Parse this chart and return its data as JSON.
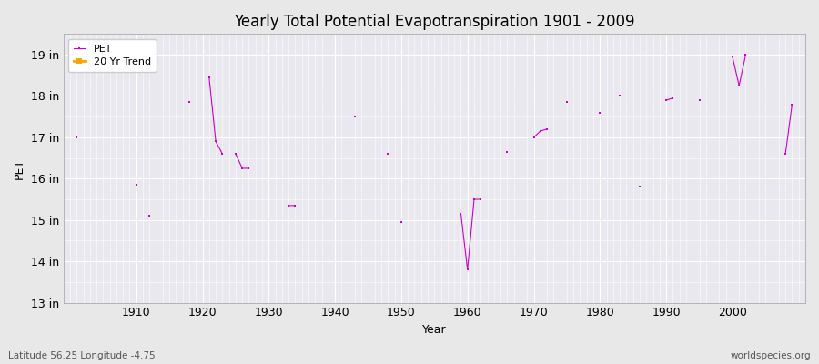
{
  "title": "Yearly Total Potential Evapotranspiration 1901 - 2009",
  "xlabel": "Year",
  "ylabel": "PET",
  "subtitle_left": "Latitude 56.25 Longitude -4.75",
  "subtitle_right": "worldspecies.org",
  "background_color": "#e8e8e8",
  "plot_bg_color": "#e8e8ee",
  "line_color": "#cc00cc",
  "trend_color": "#ffa500",
  "ylim": [
    13,
    19.5
  ],
  "ytick_labels": [
    "13 in",
    "14 in",
    "15 in",
    "16 in",
    "17 in",
    "18 in",
    "19 in"
  ],
  "ytick_values": [
    13,
    14,
    15,
    16,
    17,
    18,
    19
  ],
  "xlim": [
    1899,
    2011
  ],
  "xtick_values": [
    1910,
    1920,
    1930,
    1940,
    1950,
    1960,
    1970,
    1980,
    1990,
    2000
  ],
  "years": [
    1901,
    1902,
    1903,
    1904,
    1905,
    1906,
    1907,
    1908,
    1909,
    1910,
    1911,
    1912,
    1913,
    1914,
    1915,
    1916,
    1917,
    1918,
    1919,
    1920,
    1921,
    1922,
    1923,
    1924,
    1925,
    1926,
    1927,
    1928,
    1929,
    1930,
    1931,
    1932,
    1933,
    1934,
    1935,
    1936,
    1937,
    1938,
    1939,
    1940,
    1941,
    1942,
    1943,
    1944,
    1945,
    1946,
    1947,
    1948,
    1949,
    1950,
    1951,
    1952,
    1953,
    1954,
    1955,
    1956,
    1957,
    1958,
    1959,
    1960,
    1961,
    1962,
    1963,
    1964,
    1965,
    1966,
    1967,
    1968,
    1969,
    1970,
    1971,
    1972,
    1973,
    1974,
    1975,
    1976,
    1977,
    1978,
    1979,
    1980,
    1981,
    1982,
    1983,
    1984,
    1985,
    1986,
    1987,
    1988,
    1989,
    1990,
    1991,
    1992,
    1993,
    1994,
    1995,
    1996,
    1997,
    1998,
    1999,
    2000,
    2001,
    2002,
    2003,
    2004,
    2005,
    2006,
    2007,
    2008,
    2009
  ],
  "pet": [
    17.0,
    null,
    null,
    null,
    null,
    null,
    null,
    null,
    null,
    15.85,
    null,
    15.1,
    null,
    null,
    null,
    null,
    null,
    17.85,
    null,
    null,
    18.45,
    16.9,
    16.6,
    null,
    16.6,
    16.25,
    16.25,
    null,
    null,
    null,
    null,
    null,
    15.35,
    15.35,
    null,
    null,
    null,
    null,
    null,
    null,
    null,
    null,
    17.5,
    null,
    null,
    null,
    null,
    16.6,
    null,
    14.95,
    null,
    null,
    null,
    null,
    null,
    null,
    null,
    null,
    15.15,
    13.8,
    15.5,
    15.5,
    null,
    null,
    null,
    16.65,
    null,
    null,
    null,
    17.0,
    17.15,
    17.2,
    null,
    null,
    17.85,
    null,
    null,
    null,
    null,
    17.6,
    null,
    null,
    18.0,
    null,
    null,
    15.8,
    null,
    null,
    null,
    17.9,
    17.95,
    null,
    null,
    null,
    17.9,
    null,
    null,
    null,
    null,
    18.95,
    18.25,
    19.0,
    null,
    null,
    null,
    null,
    null,
    16.6,
    17.8
  ]
}
